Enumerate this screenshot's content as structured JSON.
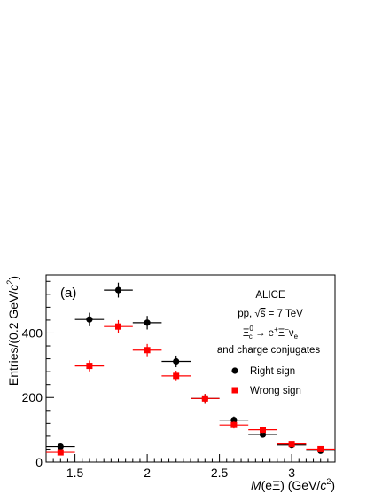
{
  "chart_data": {
    "type": "scatter",
    "title": "",
    "panel_label": "(a)",
    "xlabel": "M(eΞ) (GeV/c²)",
    "ylabel": "Entries/(0.2 GeV/c²)",
    "xlim": [
      1.3,
      3.3
    ],
    "ylim": [
      0,
      580
    ],
    "x_ticks": [
      1.5,
      2,
      2.5,
      3
    ],
    "x_tick_labels": [
      "1.5",
      "2",
      "2.5",
      "3"
    ],
    "y_ticks": [
      0,
      200,
      400
    ],
    "y_tick_labels": [
      "0",
      "200",
      "400"
    ],
    "grid": false,
    "legend_position": "top-right",
    "annotations": [
      "ALICE",
      "pp, √s = 7 TeV",
      "Ξc0 → e+Ξ−νe",
      "and charge conjugates"
    ],
    "series": [
      {
        "name": "Right sign",
        "color": "#000000",
        "marker": "circle",
        "x": [
          1.4,
          1.6,
          1.8,
          2.0,
          2.2,
          2.4,
          2.6,
          2.8,
          3.0,
          3.2
        ],
        "y": [
          48,
          442,
          533,
          432,
          312,
          197,
          130,
          85,
          53,
          35
        ],
        "x_err": [
          0.1,
          0.1,
          0.1,
          0.1,
          0.1,
          0.1,
          0.1,
          0.1,
          0.1,
          0.1
        ],
        "y_err": [
          7,
          21,
          23,
          21,
          18,
          14,
          11,
          9,
          7,
          6
        ]
      },
      {
        "name": "Wrong sign",
        "color": "#ff0000",
        "marker": "square",
        "x": [
          1.4,
          1.6,
          1.8,
          2.0,
          2.2,
          2.4,
          2.6,
          2.8,
          3.0,
          3.2
        ],
        "y": [
          30,
          298,
          420,
          347,
          267,
          197,
          115,
          100,
          56,
          40
        ],
        "x_err": [
          0.1,
          0.1,
          0.1,
          0.1,
          0.1,
          0.1,
          0.1,
          0.1,
          0.1,
          0.1
        ],
        "y_err": [
          5,
          17,
          20,
          19,
          16,
          14,
          11,
          10,
          7,
          6
        ]
      }
    ]
  }
}
